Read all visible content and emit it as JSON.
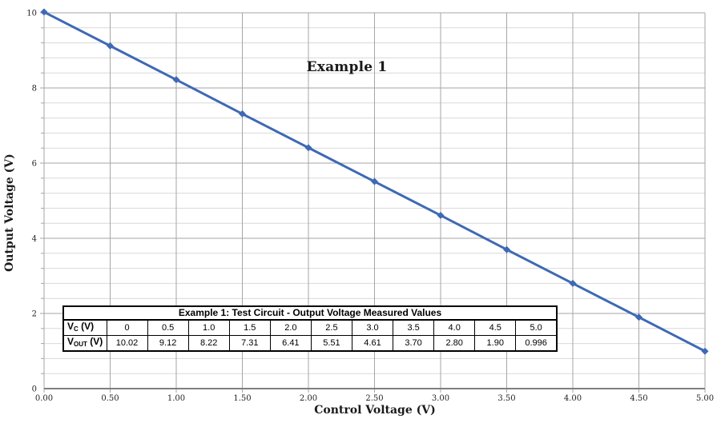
{
  "title": "Example 1",
  "x_axis": {
    "label": "Control Voltage (V)"
  },
  "y_axis": {
    "label": "Output Voltage (V)"
  },
  "chart_data": {
    "type": "line",
    "title": "Example 1",
    "xlabel": "Control Voltage (V)",
    "ylabel": "Output Voltage (V)",
    "x": [
      0,
      0.5,
      1.0,
      1.5,
      2.0,
      2.5,
      3.0,
      3.5,
      4.0,
      4.5,
      5.0
    ],
    "series": [
      {
        "name": "Output Voltage Measured",
        "values": [
          10.02,
          9.12,
          8.22,
          7.31,
          6.41,
          5.51,
          4.61,
          3.7,
          2.8,
          1.9,
          0.996
        ]
      }
    ],
    "xlim": [
      0,
      5
    ],
    "ylim": [
      0,
      10
    ],
    "x_major": 0.5,
    "y_major": 2,
    "y_minor": 0.4,
    "x_tick_labels": [
      "0.00",
      "0.50",
      "1.00",
      "1.50",
      "2.00",
      "2.50",
      "3.00",
      "3.50",
      "4.00",
      "4.50",
      "5.00"
    ],
    "y_tick_labels": [
      "0",
      "2",
      "4",
      "6",
      "8",
      "10"
    ],
    "grid": true,
    "legend": "none",
    "marker": "diamond"
  },
  "table": {
    "header": "Example 1: Test Circuit - Output Voltage Measured Values",
    "rows": [
      {
        "label_main": "V",
        "label_sub": "C",
        "label_suffix": " (V)",
        "values": [
          "0",
          "0.5",
          "1.0",
          "1.5",
          "2.0",
          "2.5",
          "3.0",
          "3.5",
          "4.0",
          "4.5",
          "5.0"
        ]
      },
      {
        "label_main": "V",
        "label_sub": "OUT",
        "label_suffix": " (V)",
        "values": [
          "10.02",
          "9.12",
          "8.22",
          "7.31",
          "6.41",
          "5.51",
          "4.61",
          "3.70",
          "2.80",
          "1.90",
          "0.996"
        ]
      }
    ]
  },
  "colors": {
    "line": "#3E69B4",
    "grid_minor": "#D9D9D9",
    "grid_major": "#A6A6A6",
    "axis_x": "#7F7F7F",
    "axis_y": "#A6A6A6",
    "tick_text": "#1F1F1F"
  }
}
